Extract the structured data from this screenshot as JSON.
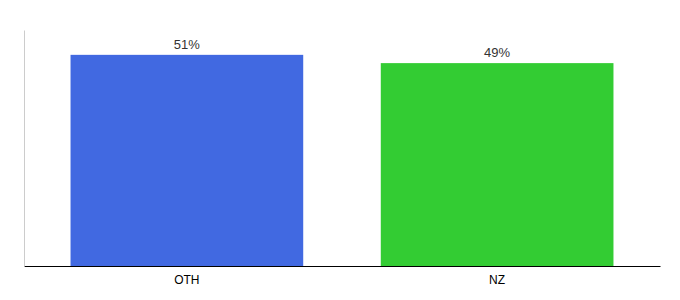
{
  "chart_data": {
    "type": "bar",
    "categories": [
      "OTH",
      "NZ"
    ],
    "values": [
      51,
      49
    ],
    "value_labels": [
      "51%",
      "49%"
    ],
    "colors": [
      "#4169e1",
      "#33cc33"
    ],
    "ylim": [
      0,
      57
    ],
    "data_labels": true,
    "tick_labels": "x"
  }
}
